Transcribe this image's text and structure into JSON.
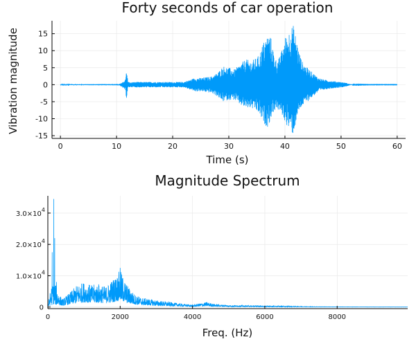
{
  "chart_data": [
    {
      "type": "line",
      "title": "Forty seconds of car operation",
      "xlabel": "Time (s)",
      "ylabel": "Vibration magnitude",
      "xlim": [
        -1.5,
        61.5
      ],
      "ylim": [
        -15.8,
        18.8
      ],
      "xticks": [
        0,
        10,
        20,
        30,
        40,
        50,
        60
      ],
      "xtick_labels": [
        "0",
        "10",
        "20",
        "30",
        "40",
        "50",
        "60"
      ],
      "yticks": [
        -15,
        -10,
        -5,
        0,
        5,
        10,
        15
      ],
      "ytick_labels": [
        "-15",
        "-10",
        "-5",
        "0",
        "5",
        "10",
        "15"
      ],
      "grid": true,
      "legend": "none",
      "color": "#009AFA",
      "series": [
        {
          "envelope_x": [
            0,
            10.5,
            11,
            11.5,
            11.8,
            12,
            12.5,
            13,
            15,
            18,
            20,
            22,
            23,
            24,
            25,
            26,
            27,
            28,
            28.5,
            29,
            30,
            31,
            32,
            33,
            34,
            35,
            35.5,
            36,
            36.5,
            37,
            37.5,
            38,
            38.5,
            39,
            39.5,
            40,
            40.5,
            41,
            41.5,
            42,
            42.5,
            43,
            44,
            45,
            46,
            47,
            48,
            49,
            50,
            51,
            51.5,
            52,
            55,
            60
          ],
          "envelope_upper": [
            0.1,
            0.2,
            0.6,
            1.2,
            5.2,
            1.0,
            0.6,
            0.8,
            0.8,
            0.8,
            0.8,
            0.8,
            1.4,
            2.0,
            2.0,
            2.2,
            2.5,
            3.5,
            4.5,
            5.5,
            5.0,
            4.5,
            6.0,
            7.5,
            7.0,
            8.0,
            9.0,
            12.0,
            13.5,
            15.0,
            14.0,
            9.5,
            7.0,
            8.0,
            10.5,
            14.0,
            15.0,
            17.0,
            17.5,
            14.0,
            10.0,
            7.0,
            5.0,
            3.5,
            2.0,
            1.5,
            1.2,
            1.0,
            0.8,
            0.5,
            0.2,
            0.1,
            0.05,
            0.05
          ],
          "envelope_lower": [
            -0.1,
            -0.2,
            -0.8,
            -1.5,
            -4.2,
            -1.0,
            -0.7,
            -0.8,
            -0.8,
            -0.8,
            -0.8,
            -0.8,
            -1.4,
            -2.0,
            -2.0,
            -2.2,
            -2.5,
            -3.5,
            -4.5,
            -5.0,
            -4.5,
            -4.5,
            -6.0,
            -7.0,
            -7.0,
            -8.0,
            -9.0,
            -11.0,
            -12.0,
            -12.5,
            -10.0,
            -8.0,
            -7.0,
            -8.0,
            -9.0,
            -11.0,
            -12.5,
            -14.0,
            -14.8,
            -11.0,
            -8.0,
            -6.5,
            -5.0,
            -3.5,
            -2.0,
            -1.5,
            -1.2,
            -1.0,
            -0.8,
            -0.5,
            -0.2,
            -0.1,
            -0.05,
            -0.05
          ]
        }
      ]
    },
    {
      "type": "line",
      "title": "Magnitude Spectrum",
      "xlabel": "Freq. (Hz)",
      "ylabel": "",
      "xlim": [
        0,
        9950
      ],
      "ylim": [
        -500,
        35500
      ],
      "xticks": [
        0,
        2000,
        4000,
        6000,
        8000
      ],
      "xtick_labels": [
        "0",
        "2000",
        "4000",
        "6000",
        "8000"
      ],
      "yticks": [
        0,
        10000,
        20000,
        30000
      ],
      "ytick_labels": [
        "0",
        "1.0×10",
        "2.0×10",
        "3.0×10"
      ],
      "ytick_exponent": "4",
      "grid": true,
      "legend": "none",
      "color": "#009AFA",
      "series": [
        {
          "peaks": [
            {
              "x": 120,
              "y": 17500
            },
            {
              "x": 165,
              "y": 34500
            },
            {
              "x": 190,
              "y": 22000
            },
            {
              "x": 240,
              "y": 8000
            },
            {
              "x": 2000,
              "y": 12500
            }
          ],
          "envelope_x": [
            0,
            100,
            150,
            300,
            400,
            600,
            800,
            1000,
            1200,
            1400,
            1600,
            1800,
            1900,
            2000,
            2100,
            2200,
            2400,
            2600,
            3000,
            3500,
            4000,
            4200,
            4400,
            4600,
            5000,
            6000,
            7000,
            7200,
            8000,
            9000,
            9950
          ],
          "envelope_upper": [
            500,
            7000,
            9000,
            4500,
            2500,
            4500,
            7000,
            8000,
            7000,
            7500,
            6500,
            9000,
            10000,
            12000,
            9000,
            7000,
            4000,
            3000,
            2200,
            1400,
            700,
            1200,
            1600,
            1000,
            600,
            400,
            250,
            150,
            80,
            50,
            30
          ],
          "envelope_base": [
            100,
            500,
            800,
            600,
            400,
            800,
            1200,
            1500,
            1300,
            1300,
            1200,
            1500,
            1800,
            2000,
            1600,
            1200,
            800,
            600,
            400,
            250,
            150,
            200,
            250,
            180,
            120,
            80,
            50,
            30,
            20,
            10,
            5
          ]
        }
      ]
    }
  ]
}
